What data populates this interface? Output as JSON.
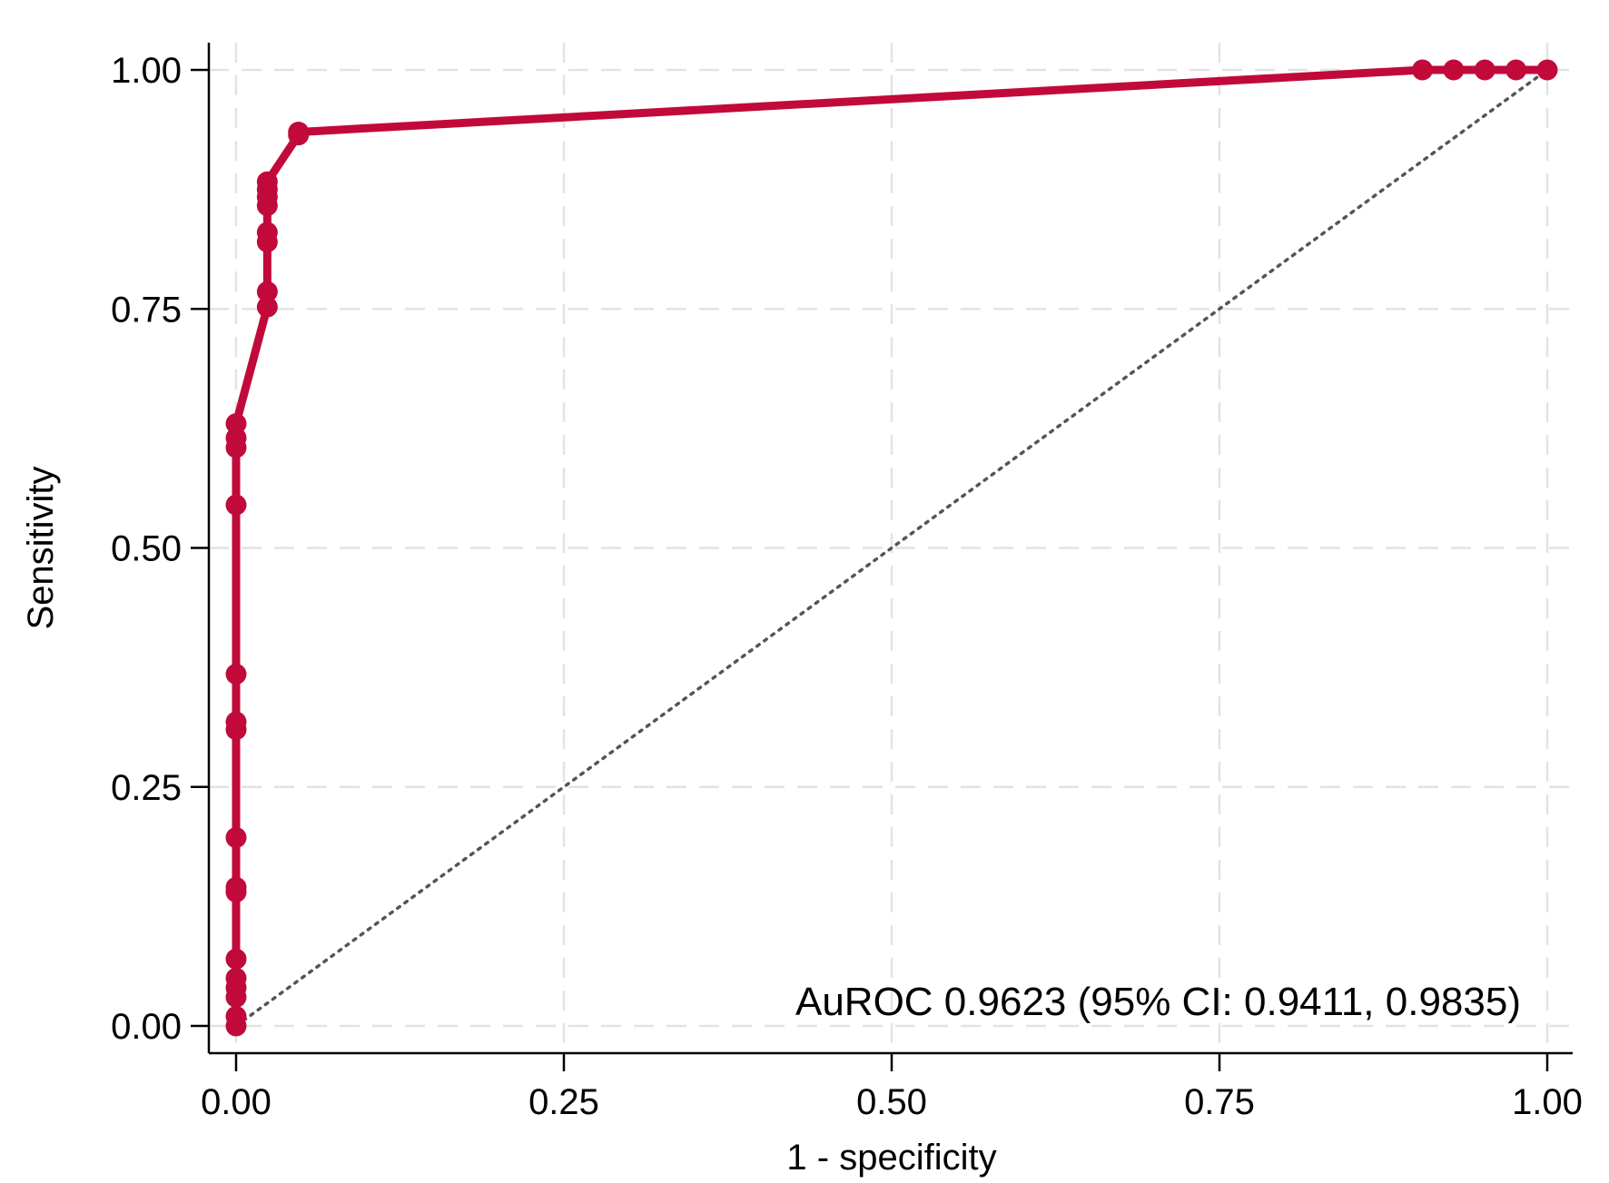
{
  "chart_data": {
    "type": "line",
    "xlabel": "1 - specificity",
    "ylabel": "Sensitivity",
    "xlim": [
      0,
      1
    ],
    "ylim": [
      0,
      1
    ],
    "xticks": [
      "0.00",
      "0.25",
      "0.50",
      "0.75",
      "1.00"
    ],
    "yticks": [
      "0.00",
      "0.25",
      "0.50",
      "0.75",
      "1.00"
    ],
    "grid": true,
    "annotation": "AuROC 0.9623 (95% CI: 0.9411, 0.9835)",
    "reference_line": {
      "x": [
        0,
        1
      ],
      "y": [
        0,
        1
      ],
      "style": "dotted"
    },
    "series": [
      {
        "color": "#c10a3a",
        "x": [
          0,
          0,
          0,
          0,
          0,
          0,
          0,
          0,
          0,
          0,
          0,
          0,
          0,
          0,
          0,
          0,
          0.0238,
          0.0238,
          0.0238,
          0.0238,
          0.0238,
          0.0238,
          0.0238,
          0.0238,
          0.0476,
          0.0476,
          0.9048,
          0.9286,
          0.9524,
          0.9762,
          1.0
        ],
        "y": [
          0,
          0.01,
          0.03,
          0.04,
          0.05,
          0.07,
          0.14,
          0.145,
          0.197,
          0.31,
          0.318,
          0.368,
          0.545,
          0.605,
          0.615,
          0.63,
          0.752,
          0.768,
          0.82,
          0.83,
          0.858,
          0.867,
          0.875,
          0.883,
          0.932,
          0.935,
          1.0,
          1.0,
          1.0,
          1.0,
          1.0
        ]
      }
    ]
  }
}
